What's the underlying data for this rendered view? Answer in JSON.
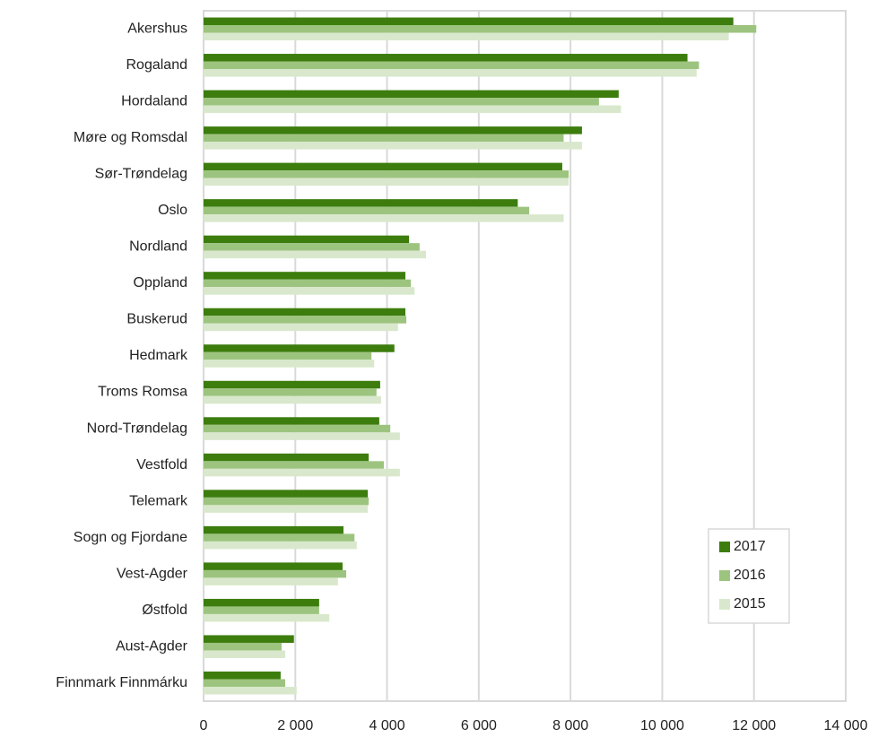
{
  "chart_data": {
    "type": "bar",
    "orientation": "horizontal",
    "categories": [
      "Akershus",
      "Rogaland",
      "Hordaland",
      "Møre og Romsdal",
      "Sør-Trøndelag",
      "Oslo",
      "Nordland",
      "Oppland",
      "Buskerud",
      "Hedmark",
      "Troms Romsa",
      "Nord-Trøndelag",
      "Vestfold",
      "Telemark",
      "Sogn og Fjordane",
      "Vest-Agder",
      "Østfold",
      "Aust-Agder",
      "Finnmark Finnmárku"
    ],
    "series": [
      {
        "name": "2017",
        "color": "#3c7d0e",
        "values": [
          11550,
          10550,
          9050,
          8250,
          7820,
          6850,
          4480,
          4400,
          4400,
          4160,
          3850,
          3830,
          3600,
          3580,
          3050,
          3030,
          2520,
          1970,
          1680
        ]
      },
      {
        "name": "2016",
        "color": "#9dc47f",
        "values": [
          12050,
          10800,
          8620,
          7850,
          7960,
          7100,
          4710,
          4520,
          4420,
          3660,
          3770,
          4070,
          3930,
          3600,
          3290,
          3110,
          2520,
          1700,
          1780
        ]
      },
      {
        "name": "2015",
        "color": "#d9e8cc",
        "values": [
          11450,
          10750,
          9100,
          8250,
          7960,
          7850,
          4850,
          4600,
          4240,
          3720,
          3870,
          4280,
          4280,
          3580,
          3340,
          2930,
          2740,
          1780,
          2030
        ]
      }
    ],
    "xlim": [
      0,
      14000
    ],
    "xticks": [
      0,
      {
        "value": 2000,
        "label": "2 000"
      },
      {
        "value": 4000,
        "label": "4 000"
      },
      {
        "value": 6000,
        "label": "6 000"
      },
      {
        "value": 8000,
        "label": "8 000"
      },
      {
        "value": 10000,
        "label": "10 000"
      },
      {
        "value": 12000,
        "label": "12 000"
      },
      {
        "value": 14000,
        "label": "14 000"
      }
    ],
    "grid": true,
    "legend": "lower right"
  }
}
